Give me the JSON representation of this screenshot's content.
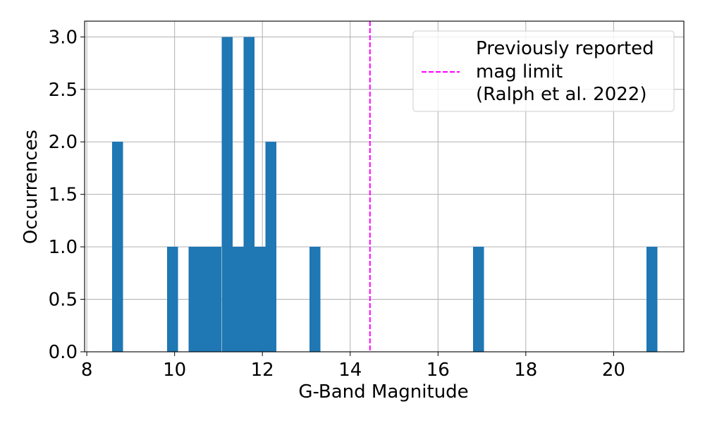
{
  "chart_data": {
    "type": "bar",
    "subtype": "histogram",
    "title": "",
    "xlabel": "G-Band Magnitude",
    "ylabel": "Occurrences",
    "xlim": [
      7.95,
      21.6
    ],
    "ylim": [
      0,
      3.15
    ],
    "xticks": [
      "8",
      "10",
      "12",
      "14",
      "16",
      "18",
      "20"
    ],
    "yticks": [
      "0.0",
      "0.5",
      "1.0",
      "1.5",
      "2.0",
      "2.5",
      "3.0"
    ],
    "grid": true,
    "bar_color": "#1f77b4",
    "bin_width": 0.249,
    "bins": [
      {
        "start": 8.58,
        "count": 2
      },
      {
        "start": 9.83,
        "count": 1
      },
      {
        "start": 10.32,
        "count": 1
      },
      {
        "start": 10.57,
        "count": 1
      },
      {
        "start": 10.82,
        "count": 1
      },
      {
        "start": 11.07,
        "count": 3
      },
      {
        "start": 11.32,
        "count": 1
      },
      {
        "start": 11.57,
        "count": 3
      },
      {
        "start": 11.82,
        "count": 1
      },
      {
        "start": 12.07,
        "count": 2
      },
      {
        "start": 13.07,
        "count": 1
      },
      {
        "start": 16.8,
        "count": 1
      },
      {
        "start": 20.75,
        "count": 1
      }
    ],
    "reference_line": {
      "x": 14.45,
      "color": "#ff00ff",
      "style": "dashed",
      "label_lines": [
        "Previously reported",
        "mag limit",
        "(Ralph et al. 2022)"
      ]
    },
    "legend_position": "top-right"
  }
}
